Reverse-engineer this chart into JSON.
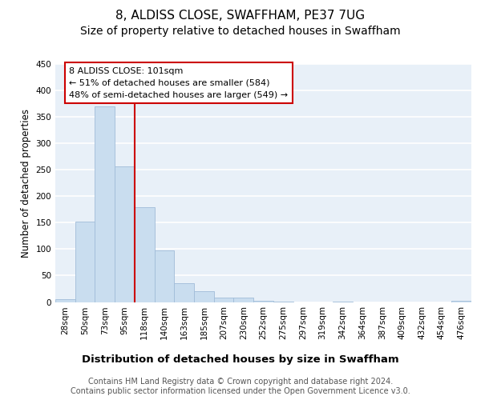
{
  "title": "8, ALDISS CLOSE, SWAFFHAM, PE37 7UG",
  "subtitle": "Size of property relative to detached houses in Swaffham",
  "xlabel": "Distribution of detached houses by size in Swaffham",
  "ylabel": "Number of detached properties",
  "categories": [
    "28sqm",
    "50sqm",
    "73sqm",
    "95sqm",
    "118sqm",
    "140sqm",
    "163sqm",
    "185sqm",
    "207sqm",
    "230sqm",
    "252sqm",
    "275sqm",
    "297sqm",
    "319sqm",
    "342sqm",
    "364sqm",
    "387sqm",
    "409sqm",
    "432sqm",
    "454sqm",
    "476sqm"
  ],
  "values": [
    5,
    152,
    370,
    256,
    180,
    97,
    35,
    20,
    9,
    9,
    3,
    1,
    0,
    0,
    1,
    0,
    0,
    0,
    0,
    0,
    3
  ],
  "bar_color": "#c9ddef",
  "bar_edge_color": "#a0bcd8",
  "bg_color": "#e8f0f8",
  "grid_color": "#ffffff",
  "vline_x_idx": 3,
  "vline_color": "#cc0000",
  "annotation_line1": "8 ALDISS CLOSE: 101sqm",
  "annotation_line2": "← 51% of detached houses are smaller (584)",
  "annotation_line3": "48% of semi-detached houses are larger (549) →",
  "annotation_box_facecolor": "#ffffff",
  "annotation_box_edgecolor": "#cc0000",
  "ylim": [
    0,
    450
  ],
  "yticks": [
    0,
    50,
    100,
    150,
    200,
    250,
    300,
    350,
    400,
    450
  ],
  "footer": "Contains HM Land Registry data © Crown copyright and database right 2024.\nContains public sector information licensed under the Open Government Licence v3.0.",
  "title_fontsize": 11,
  "subtitle_fontsize": 10,
  "xlabel_fontsize": 9.5,
  "ylabel_fontsize": 8.5,
  "tick_fontsize": 7.5,
  "annotation_fontsize": 8,
  "footer_fontsize": 7
}
